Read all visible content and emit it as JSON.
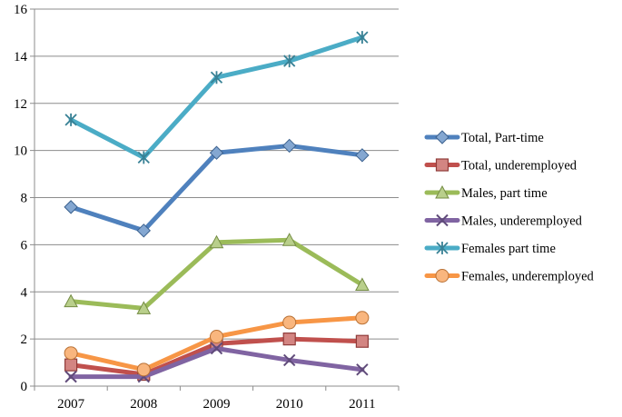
{
  "chart_data": {
    "type": "line",
    "title": "",
    "xlabel": "",
    "ylabel": "",
    "x": [
      "2007",
      "2008",
      "2009",
      "2010",
      "2011"
    ],
    "ylim": [
      0,
      16
    ],
    "yticks": [
      0,
      2,
      4,
      6,
      8,
      10,
      12,
      14,
      16
    ],
    "grid": "horizontal",
    "legend_position": "right",
    "series": [
      {
        "name": "Total,  Part-time",
        "color": "#4F81BD",
        "marker": "diamond",
        "values": [
          7.6,
          6.6,
          9.9,
          10.2,
          9.8
        ]
      },
      {
        "name": "Total, underemployed",
        "color": "#C0504D",
        "marker": "square",
        "values": [
          0.9,
          0.5,
          1.8,
          2.0,
          1.9
        ]
      },
      {
        "name": "Males, part time",
        "color": "#9BBB59",
        "marker": "triangle",
        "values": [
          3.6,
          3.3,
          6.1,
          6.2,
          4.3
        ]
      },
      {
        "name": "Males, underemployed",
        "color": "#8064A2",
        "marker": "x",
        "values": [
          0.4,
          0.4,
          1.6,
          1.1,
          0.7
        ]
      },
      {
        "name": "Females part time",
        "color": "#4BACC6",
        "marker": "star",
        "values": [
          11.3,
          9.7,
          13.1,
          13.8,
          14.8
        ]
      },
      {
        "name": "Females, underemployed",
        "color": "#F79646",
        "marker": "circle",
        "values": [
          1.4,
          0.7,
          2.1,
          2.7,
          2.9
        ]
      }
    ]
  }
}
